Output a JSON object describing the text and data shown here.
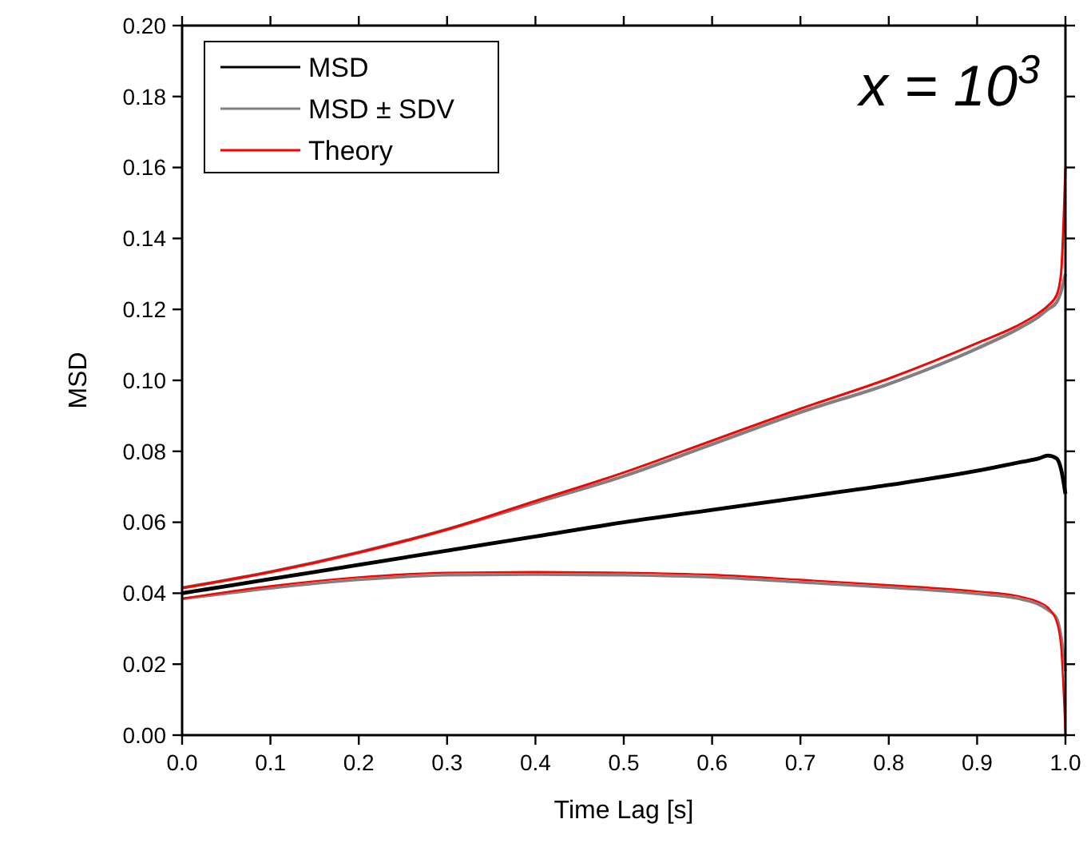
{
  "chart_data": {
    "type": "line",
    "xlabel": "Time Lag [s]",
    "ylabel": "MSD",
    "legend": "top left",
    "grid": false,
    "annotations": [
      "x = 10$^{3}$"
    ],
    "xlim": [
      0,
      1
    ],
    "ylim": [
      0,
      0.2
    ],
    "xticks": [
      {
        "value": 0,
        "label": "0.0"
      },
      {
        "value": 0.1,
        "label": "0.1"
      },
      {
        "value": 0.2,
        "label": "0.2"
      },
      {
        "value": 0.3,
        "label": "0.3"
      },
      {
        "value": 0.4,
        "label": "0.4"
      },
      {
        "value": 0.5,
        "label": "0.5"
      },
      {
        "value": 0.6,
        "label": "0.6"
      },
      {
        "value": 0.7,
        "label": "0.7"
      },
      {
        "value": 0.8,
        "label": "0.8"
      },
      {
        "value": 0.9,
        "label": "0.9"
      },
      {
        "value": 1,
        "label": "1.0"
      }
    ],
    "yticks": [
      {
        "value": 0,
        "label": "0.00"
      },
      {
        "value": 0.02,
        "label": "0.02"
      },
      {
        "value": 0.04,
        "label": "0.04"
      },
      {
        "value": 0.06,
        "label": "0.06"
      },
      {
        "value": 0.08,
        "label": "0.08"
      },
      {
        "value": 0.1,
        "label": "0.10"
      },
      {
        "value": 0.12,
        "label": "0.12"
      },
      {
        "value": 0.14,
        "label": "0.14"
      },
      {
        "value": 0.16,
        "label": "0.16"
      },
      {
        "value": 0.18,
        "label": "0.18"
      },
      {
        "value": 0.2,
        "label": "0.20"
      }
    ],
    "x": [
      0,
      0.1,
      0.2,
      0.3,
      0.4,
      0.5,
      0.6,
      0.7,
      0.8,
      0.9,
      0.95,
      0.97,
      0.98,
      0.99,
      0.995,
      1
    ],
    "series": [
      {
        "name": "MSD",
        "color": "#000000",
        "values": [
          0.04,
          0.044,
          0.048,
          0.052,
          0.056,
          0.06,
          0.0635,
          0.067,
          0.0705,
          0.0745,
          0.077,
          0.078,
          0.0788,
          0.078,
          0.075,
          0.068
        ]
      },
      {
        "name": "MSD ± SDV",
        "color": "#808080",
        "values": [
          0.0415,
          0.046,
          0.0515,
          0.058,
          0.0655,
          0.073,
          0.082,
          0.091,
          0.099,
          0.109,
          0.115,
          0.118,
          0.12,
          0.122,
          0.125,
          0.13
        ]
      },
      {
        "color": "#808080",
        "values": [
          0.0384,
          0.0414,
          0.0438,
          0.0451,
          0.0453,
          0.0451,
          0.0445,
          0.0431,
          0.0416,
          0.0398,
          0.0383,
          0.0368,
          0.0353,
          0.033,
          0.028,
          0.018
        ]
      },
      {
        "name": "Theory",
        "color": "#ff0000",
        "values": [
          0.0415,
          0.046,
          0.0515,
          0.058,
          0.066,
          0.074,
          0.083,
          0.092,
          0.1005,
          0.1105,
          0.116,
          0.119,
          0.121,
          0.124,
          0.13,
          0.16
        ]
      },
      {
        "color": "#ff0000",
        "values": [
          0.0385,
          0.042,
          0.0445,
          0.0458,
          0.046,
          0.0458,
          0.0452,
          0.0438,
          0.0423,
          0.0405,
          0.039,
          0.0375,
          0.036,
          0.032,
          0.025,
          0
        ]
      }
    ]
  }
}
